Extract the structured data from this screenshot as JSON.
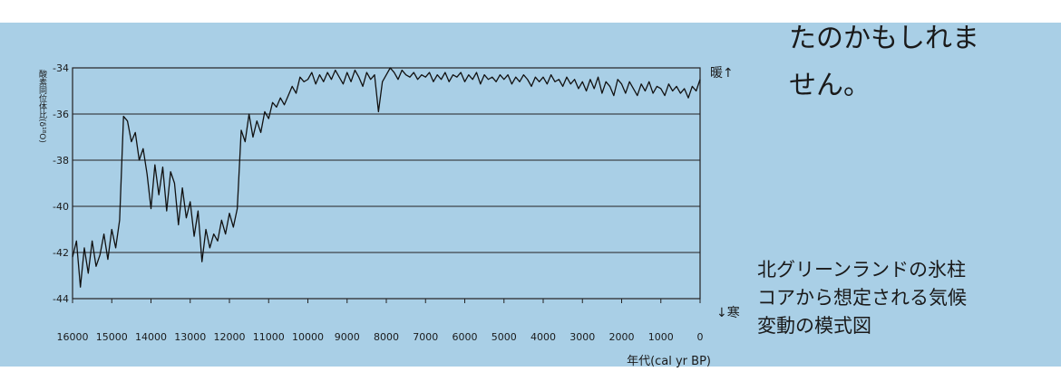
{
  "chart_data": {
    "type": "line",
    "y_label": "酸素同位体比(δ¹⁸O)",
    "x_label": "年代(cal yr BP)",
    "annotations": [
      "暖↑",
      "↓寒"
    ],
    "color": "#111111",
    "grid": true,
    "xlim": [
      16000,
      0
    ],
    "xticks": [
      16000,
      15000,
      14000,
      13000,
      12000,
      11000,
      10000,
      9000,
      8000,
      7000,
      6000,
      5000,
      4000,
      3000,
      2000,
      1000,
      0
    ],
    "ylim": [
      -44,
      -34
    ],
    "yticks": [
      -44,
      -42,
      -40,
      -38,
      -36,
      -34
    ],
    "x": [
      16000,
      15900,
      15800,
      15700,
      15600,
      15500,
      15400,
      15300,
      15200,
      15100,
      15000,
      14900,
      14800,
      14700,
      14600,
      14500,
      14400,
      14300,
      14200,
      14100,
      14000,
      13900,
      13800,
      13700,
      13600,
      13500,
      13400,
      13300,
      13200,
      13100,
      13000,
      12900,
      12800,
      12700,
      12600,
      12500,
      12400,
      12300,
      12200,
      12100,
      12000,
      11900,
      11800,
      11700,
      11600,
      11500,
      11400,
      11300,
      11200,
      11100,
      11000,
      10900,
      10800,
      10700,
      10600,
      10500,
      10400,
      10300,
      10200,
      10100,
      10000,
      9900,
      9800,
      9700,
      9600,
      9500,
      9400,
      9300,
      9200,
      9100,
      9000,
      8900,
      8800,
      8700,
      8600,
      8500,
      8400,
      8300,
      8200,
      8100,
      8000,
      7900,
      7800,
      7700,
      7600,
      7500,
      7400,
      7300,
      7200,
      7100,
      7000,
      6900,
      6800,
      6700,
      6600,
      6500,
      6400,
      6300,
      6200,
      6100,
      6000,
      5900,
      5800,
      5700,
      5600,
      5500,
      5400,
      5300,
      5200,
      5100,
      5000,
      4900,
      4800,
      4700,
      4600,
      4500,
      4400,
      4300,
      4200,
      4100,
      4000,
      3900,
      3800,
      3700,
      3600,
      3500,
      3400,
      3300,
      3200,
      3100,
      3000,
      2900,
      2800,
      2700,
      2600,
      2500,
      2400,
      2300,
      2200,
      2100,
      2000,
      1900,
      1800,
      1700,
      1600,
      1500,
      1400,
      1300,
      1200,
      1100,
      1000,
      900,
      800,
      700,
      600,
      500,
      400,
      300,
      200,
      100,
      0
    ],
    "values": [
      -42.2,
      -41.5,
      -43.5,
      -41.8,
      -42.9,
      -41.5,
      -42.6,
      -42.1,
      -41.2,
      -42.3,
      -41.0,
      -41.8,
      -40.6,
      -36.1,
      -36.3,
      -37.2,
      -36.8,
      -38.0,
      -37.5,
      -38.6,
      -40.1,
      -38.2,
      -39.5,
      -38.3,
      -40.2,
      -38.5,
      -39.0,
      -40.8,
      -39.2,
      -40.5,
      -39.8,
      -41.3,
      -40.2,
      -42.4,
      -41.0,
      -41.8,
      -41.2,
      -41.5,
      -40.6,
      -41.2,
      -40.3,
      -40.9,
      -40.1,
      -36.7,
      -37.2,
      -36.0,
      -37.0,
      -36.3,
      -36.8,
      -35.9,
      -36.2,
      -35.5,
      -35.7,
      -35.3,
      -35.6,
      -35.2,
      -34.8,
      -35.1,
      -34.4,
      -34.6,
      -34.5,
      -34.2,
      -34.7,
      -34.3,
      -34.6,
      -34.2,
      -34.5,
      -34.1,
      -34.4,
      -34.7,
      -34.2,
      -34.6,
      -34.1,
      -34.4,
      -34.8,
      -34.2,
      -34.5,
      -34.3,
      -35.9,
      -34.6,
      -34.3,
      -34.0,
      -34.2,
      -34.5,
      -34.1,
      -34.3,
      -34.4,
      -34.2,
      -34.5,
      -34.3,
      -34.4,
      -34.2,
      -34.6,
      -34.3,
      -34.5,
      -34.2,
      -34.6,
      -34.3,
      -34.4,
      -34.2,
      -34.6,
      -34.3,
      -34.5,
      -34.2,
      -34.7,
      -34.3,
      -34.5,
      -34.4,
      -34.6,
      -34.3,
      -34.5,
      -34.3,
      -34.7,
      -34.4,
      -34.6,
      -34.3,
      -34.5,
      -34.8,
      -34.4,
      -34.6,
      -34.4,
      -34.7,
      -34.3,
      -34.6,
      -34.5,
      -34.8,
      -34.4,
      -34.7,
      -34.5,
      -34.9,
      -34.6,
      -35.0,
      -34.5,
      -34.9,
      -34.4,
      -35.1,
      -34.6,
      -34.8,
      -35.2,
      -34.5,
      -34.7,
      -35.1,
      -34.6,
      -34.9,
      -35.2,
      -34.7,
      -35.0,
      -34.6,
      -35.1,
      -34.8,
      -34.9,
      -35.2,
      -34.7,
      -35.0,
      -34.8,
      -35.1,
      -34.9,
      -35.3,
      -34.8,
      -35.0,
      -34.5
    ]
  },
  "side_text": [
    "たのかもしれま",
    "せん。"
  ],
  "caption": [
    "北グリーンランドの氷柱",
    "コアから想定される気候",
    "変動の模式図"
  ]
}
